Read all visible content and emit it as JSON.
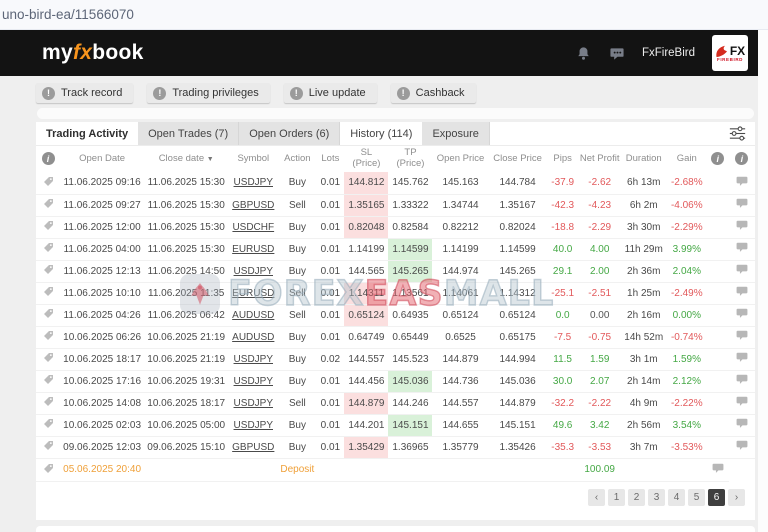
{
  "browser": {
    "url_text": "uno-bird-ea/11566070"
  },
  "header": {
    "logo_my": "my",
    "logo_fx": "fx",
    "logo_book": "book",
    "account_name": "FxFireBird",
    "badge": {
      "fx": "FX",
      "sub": "FIREBIRD"
    }
  },
  "info_buttons": [
    {
      "id": "track-record",
      "label": "Track record"
    },
    {
      "id": "trading-privileges",
      "label": "Trading privileges"
    },
    {
      "id": "live-update",
      "label": "Live update"
    },
    {
      "id": "cashback",
      "label": "Cashback"
    }
  ],
  "tabs": [
    {
      "id": "trading-activity",
      "label": "Trading Activity",
      "active": true,
      "bold": true
    },
    {
      "id": "open-trades",
      "label": "Open Trades (7)",
      "active": false
    },
    {
      "id": "open-orders",
      "label": "Open Orders (6)",
      "active": false
    },
    {
      "id": "history",
      "label": "History (114)",
      "active": true
    },
    {
      "id": "exposure",
      "label": "Exposure",
      "active": false
    }
  ],
  "table": {
    "columns": [
      {
        "icon": "info"
      },
      {
        "label": "Open Date"
      },
      {
        "label": "Close date",
        "sort": "desc"
      },
      {
        "label": "Symbol"
      },
      {
        "label": "Action"
      },
      {
        "label": "Lots"
      },
      {
        "label": "SL",
        "label2": "(Price)"
      },
      {
        "label": "TP",
        "label2": "(Price)"
      },
      {
        "label": "Open Price"
      },
      {
        "label": "Close Price"
      },
      {
        "label": "Pips"
      },
      {
        "label": "Net Profit"
      },
      {
        "label": "Duration"
      },
      {
        "label": "Gain"
      },
      {
        "icon": "info"
      },
      {
        "icon": "info"
      }
    ],
    "rows": [
      {
        "open_date": "11.06.2025 09:16",
        "close_date": "11.06.2025 15:30",
        "symbol": "USDJPY",
        "action": "Buy",
        "lots": "0.01",
        "sl": "144.812",
        "sl_hit": true,
        "tp": "145.762",
        "tp_hit": false,
        "open_price": "145.163",
        "close_price": "144.784",
        "pips": "-37.9",
        "pips_sign": "neg",
        "net_profit": "-2.62",
        "np_sign": "neg",
        "duration": "6h 13m",
        "gain": "-2.68%",
        "gain_sign": "neg"
      },
      {
        "open_date": "11.06.2025 09:27",
        "close_date": "11.06.2025 15:30",
        "symbol": "GBPUSD",
        "action": "Sell",
        "lots": "0.01",
        "sl": "1.35165",
        "sl_hit": true,
        "tp": "1.33322",
        "tp_hit": false,
        "open_price": "1.34744",
        "close_price": "1.35167",
        "pips": "-42.3",
        "pips_sign": "neg",
        "net_profit": "-4.23",
        "np_sign": "neg",
        "duration": "6h 2m",
        "gain": "-4.06%",
        "gain_sign": "neg"
      },
      {
        "open_date": "11.06.2025 12:00",
        "close_date": "11.06.2025 15:30",
        "symbol": "USDCHF",
        "action": "Buy",
        "lots": "0.01",
        "sl": "0.82048",
        "sl_hit": true,
        "tp": "0.82584",
        "tp_hit": false,
        "open_price": "0.82212",
        "close_price": "0.82024",
        "pips": "-18.8",
        "pips_sign": "neg",
        "net_profit": "-2.29",
        "np_sign": "neg",
        "duration": "3h 30m",
        "gain": "-2.29%",
        "gain_sign": "neg"
      },
      {
        "open_date": "11.06.2025 04:00",
        "close_date": "11.06.2025 15:30",
        "symbol": "EURUSD",
        "action": "Buy",
        "lots": "0.01",
        "sl": "1.14199",
        "sl_hit": false,
        "tp": "1.14599",
        "tp_hit": true,
        "open_price": "1.14199",
        "close_price": "1.14599",
        "pips": "40.0",
        "pips_sign": "pos",
        "net_profit": "4.00",
        "np_sign": "pos",
        "duration": "11h 29m",
        "gain": "3.99%",
        "gain_sign": "pos"
      },
      {
        "open_date": "11.06.2025 12:13",
        "close_date": "11.06.2025 14:50",
        "symbol": "USDJPY",
        "action": "Buy",
        "lots": "0.01",
        "sl": "144.565",
        "sl_hit": false,
        "tp": "145.265",
        "tp_hit": true,
        "open_price": "144.974",
        "close_price": "145.265",
        "pips": "29.1",
        "pips_sign": "pos",
        "net_profit": "2.00",
        "np_sign": "pos",
        "duration": "2h 36m",
        "gain": "2.04%",
        "gain_sign": "pos"
      },
      {
        "open_date": "11.06.2025 10:10",
        "close_date": "11.06.2025 11:35",
        "symbol": "EURUSD",
        "action": "Sell",
        "lots": "0.01",
        "sl": "1.14311",
        "sl_hit": true,
        "tp": "1.13561",
        "tp_hit": false,
        "open_price": "1.14061",
        "close_price": "1.14312",
        "pips": "-25.1",
        "pips_sign": "neg",
        "net_profit": "-2.51",
        "np_sign": "neg",
        "duration": "1h 25m",
        "gain": "-2.49%",
        "gain_sign": "neg"
      },
      {
        "open_date": "11.06.2025 04:26",
        "close_date": "11.06.2025 06:42",
        "symbol": "AUDUSD",
        "action": "Sell",
        "lots": "0.01",
        "sl": "0.65124",
        "sl_hit": true,
        "tp": "0.64935",
        "tp_hit": false,
        "open_price": "0.65124",
        "close_price": "0.65124",
        "pips": "0.0",
        "pips_sign": "pos",
        "net_profit": "0.00",
        "np_sign": "neutral",
        "duration": "2h 16m",
        "gain": "0.00%",
        "gain_sign": "pos"
      },
      {
        "open_date": "10.06.2025 06:26",
        "close_date": "10.06.2025 21:19",
        "symbol": "AUDUSD",
        "action": "Buy",
        "lots": "0.01",
        "sl": "0.64749",
        "sl_hit": false,
        "tp": "0.65449",
        "tp_hit": false,
        "open_price": "0.6525",
        "close_price": "0.65175",
        "pips": "-7.5",
        "pips_sign": "neg",
        "net_profit": "-0.75",
        "np_sign": "neg",
        "duration": "14h 52m",
        "gain": "-0.74%",
        "gain_sign": "neg"
      },
      {
        "open_date": "10.06.2025 18:17",
        "close_date": "10.06.2025 21:19",
        "symbol": "USDJPY",
        "action": "Buy",
        "lots": "0.02",
        "sl": "144.557",
        "sl_hit": false,
        "tp": "145.523",
        "tp_hit": false,
        "open_price": "144.879",
        "close_price": "144.994",
        "pips": "11.5",
        "pips_sign": "pos",
        "net_profit": "1.59",
        "np_sign": "pos",
        "duration": "3h 1m",
        "gain": "1.59%",
        "gain_sign": "pos"
      },
      {
        "open_date": "10.06.2025 17:16",
        "close_date": "10.06.2025 19:31",
        "symbol": "USDJPY",
        "action": "Buy",
        "lots": "0.01",
        "sl": "144.456",
        "sl_hit": false,
        "tp": "145.036",
        "tp_hit": true,
        "open_price": "144.736",
        "close_price": "145.036",
        "pips": "30.0",
        "pips_sign": "pos",
        "net_profit": "2.07",
        "np_sign": "pos",
        "duration": "2h 14m",
        "gain": "2.12%",
        "gain_sign": "pos"
      },
      {
        "open_date": "10.06.2025 14:08",
        "close_date": "10.06.2025 18:17",
        "symbol": "USDJPY",
        "action": "Sell",
        "lots": "0.01",
        "sl": "144.879",
        "sl_hit": true,
        "tp": "144.246",
        "tp_hit": false,
        "open_price": "144.557",
        "close_price": "144.879",
        "pips": "-32.2",
        "pips_sign": "neg",
        "net_profit": "-2.22",
        "np_sign": "neg",
        "duration": "4h 9m",
        "gain": "-2.22%",
        "gain_sign": "neg"
      },
      {
        "open_date": "10.06.2025 02:03",
        "close_date": "10.06.2025 05:00",
        "symbol": "USDJPY",
        "action": "Buy",
        "lots": "0.01",
        "sl": "144.201",
        "sl_hit": false,
        "tp": "145.151",
        "tp_hit": true,
        "open_price": "144.655",
        "close_price": "145.151",
        "pips": "49.6",
        "pips_sign": "pos",
        "net_profit": "3.42",
        "np_sign": "pos",
        "duration": "2h 56m",
        "gain": "3.54%",
        "gain_sign": "pos"
      },
      {
        "open_date": "09.06.2025 12:03",
        "close_date": "09.06.2025 15:10",
        "symbol": "GBPUSD",
        "action": "Buy",
        "lots": "0.01",
        "sl": "1.35429",
        "sl_hit": true,
        "tp": "1.36965",
        "tp_hit": false,
        "open_price": "1.35779",
        "close_price": "1.35426",
        "pips": "-35.3",
        "pips_sign": "neg",
        "net_profit": "-3.53",
        "np_sign": "neg",
        "duration": "3h 7m",
        "gain": "-3.53%",
        "gain_sign": "neg"
      }
    ],
    "deposit_row": {
      "date": "05.06.2025 20:40",
      "action": "Deposit",
      "net_profit": "100.09"
    }
  },
  "pagination": {
    "prev": "‹",
    "pages": [
      "1",
      "2",
      "3",
      "4",
      "5",
      "6"
    ],
    "active": "6",
    "next": "›"
  },
  "watermark": {
    "segments": [
      {
        "text": "FOREX",
        "style": "outline"
      },
      {
        "text": "EAS",
        "style": "red"
      },
      {
        "text": "MALL",
        "style": "outline"
      }
    ]
  },
  "colors": {
    "accent_orange": "#f7941d",
    "loss_red": "#e2595b",
    "profit_green": "#45a845",
    "sl_bg": "#fbdfdf",
    "tp_bg": "#d9f1d9",
    "deposit_orange": "#efa039",
    "header_bg": "#131313",
    "active_page_bg": "#3f3f3f"
  }
}
